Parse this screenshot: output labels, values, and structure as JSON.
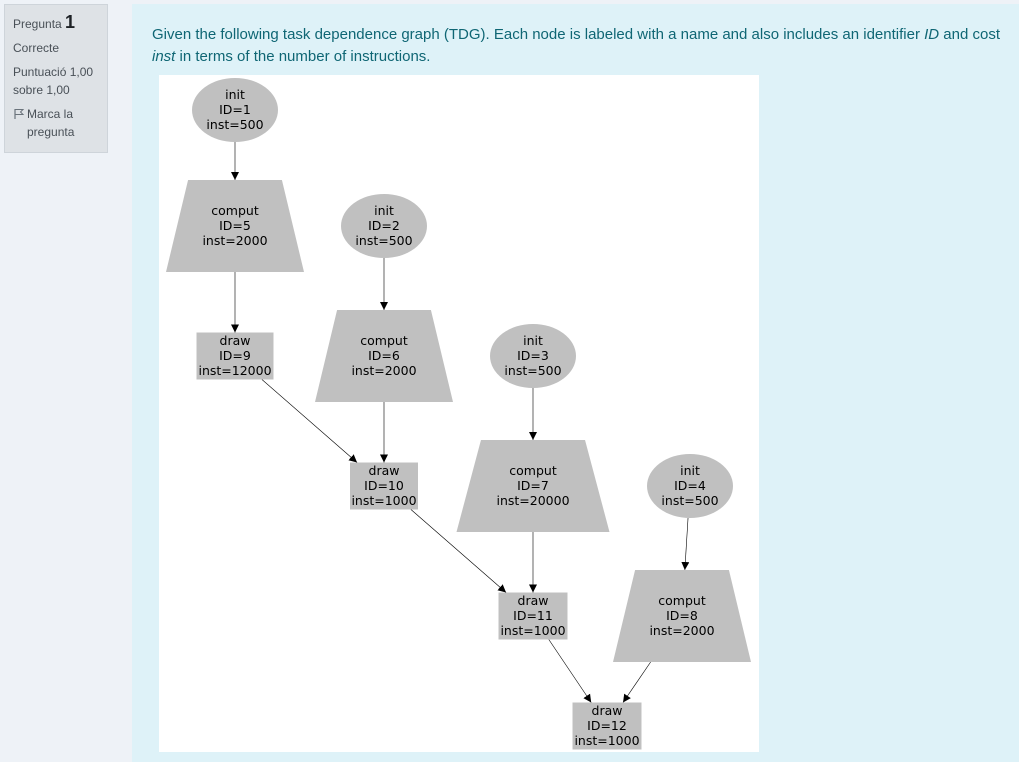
{
  "question": {
    "label": "Pregunta",
    "number": "1",
    "state": "Correcte",
    "grade": "Puntuació 1,00 sobre 1,00",
    "flag_label": "Marca la pregunta"
  },
  "text": {
    "part1": "Given the following task dependence graph (TDG). Each node is labeled with a name and also includes an identifier ",
    "id_term": "ID",
    "part2": " and cost ",
    "inst_term": "inst",
    "part3": " in terms of the number of instructions."
  },
  "colors": {
    "node_fill": "#c0c0c0",
    "edge": "#000000",
    "text": "#0f6674"
  },
  "graph": {
    "nodes": [
      {
        "key": "n1",
        "shape": "ellipse",
        "name": "init",
        "id_label": "ID=1",
        "inst_label": "inst=500"
      },
      {
        "key": "n5",
        "shape": "trapezium",
        "name": "comput",
        "id_label": "ID=5",
        "inst_label": "inst=2000"
      },
      {
        "key": "n9",
        "shape": "box",
        "name": "draw",
        "id_label": "ID=9",
        "inst_label": "inst=12000"
      },
      {
        "key": "n2",
        "shape": "ellipse",
        "name": "init",
        "id_label": "ID=2",
        "inst_label": "inst=500"
      },
      {
        "key": "n6",
        "shape": "trapezium",
        "name": "comput",
        "id_label": "ID=6",
        "inst_label": "inst=2000"
      },
      {
        "key": "n10",
        "shape": "box",
        "name": "draw",
        "id_label": "ID=10",
        "inst_label": "inst=1000"
      },
      {
        "key": "n3",
        "shape": "ellipse",
        "name": "init",
        "id_label": "ID=3",
        "inst_label": "inst=500"
      },
      {
        "key": "n7",
        "shape": "trapezium",
        "name": "comput",
        "id_label": "ID=7",
        "inst_label": "inst=20000"
      },
      {
        "key": "n11",
        "shape": "box",
        "name": "draw",
        "id_label": "ID=11",
        "inst_label": "inst=1000"
      },
      {
        "key": "n4",
        "shape": "ellipse",
        "name": "init",
        "id_label": "ID=4",
        "inst_label": "inst=500"
      },
      {
        "key": "n8",
        "shape": "trapezium",
        "name": "comput",
        "id_label": "ID=8",
        "inst_label": "inst=2000"
      },
      {
        "key": "n12",
        "shape": "box",
        "name": "draw",
        "id_label": "ID=12",
        "inst_label": "inst=1000"
      }
    ],
    "edges": [
      {
        "from": "n1",
        "to": "n5"
      },
      {
        "from": "n5",
        "to": "n9"
      },
      {
        "from": "n2",
        "to": "n6"
      },
      {
        "from": "n9",
        "to": "n10"
      },
      {
        "from": "n6",
        "to": "n10"
      },
      {
        "from": "n3",
        "to": "n7"
      },
      {
        "from": "n10",
        "to": "n11"
      },
      {
        "from": "n7",
        "to": "n11"
      },
      {
        "from": "n4",
        "to": "n8"
      },
      {
        "from": "n11",
        "to": "n12"
      },
      {
        "from": "n8",
        "to": "n12"
      }
    ]
  }
}
